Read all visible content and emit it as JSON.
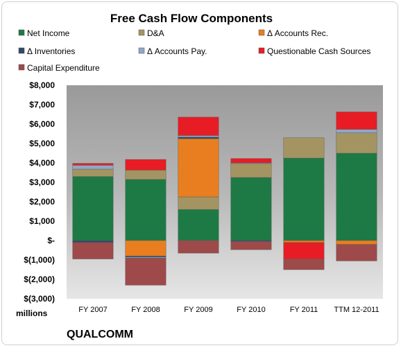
{
  "company": "QUALCOMM",
  "colors": {
    "plot_bg": "#b7b7b7",
    "Net Income": "#1e7a45",
    "D&A": "#a39462",
    "Δ Accounts Rec.": "#e87e1f",
    "Δ Inventories": "#2f4a66",
    "Δ Accounts Pay.": "#8ea8c9",
    "Questionable Cash Sources": "#e81c24",
    "Capital Expenditure": "#9e4a4a"
  },
  "chart_data": {
    "type": "bar",
    "stacked": true,
    "title": "Free Cash Flow Components",
    "ylabel": "millions",
    "xlabel": "",
    "ylim": [
      -3000,
      8000
    ],
    "yticks": [
      8000,
      7000,
      6000,
      5000,
      4000,
      3000,
      2000,
      1000,
      0,
      -1000,
      -2000,
      -3000
    ],
    "ytick_labels": [
      "$8,000",
      "$7,000",
      "$6,000",
      "$5,000",
      "$4,000",
      "$3,000",
      "$2,000",
      "$1,000",
      "$-",
      "$(1,000)",
      "$(2,000)",
      "$(3,000)"
    ],
    "categories": [
      "FY 2007",
      "FY 2008",
      "FY 2009",
      "FY 2010",
      "FY 2011",
      "TTM 12-2011"
    ],
    "legend_position": "top",
    "grid": false,
    "series": [
      {
        "name": "Net Income",
        "values": [
          3300,
          3150,
          1600,
          3250,
          4250,
          4500
        ]
      },
      {
        "name": "D&A",
        "values": [
          380,
          480,
          650,
          720,
          1050,
          1050
        ]
      },
      {
        "name": "Δ Accounts Rec.",
        "values": [
          0,
          -800,
          3000,
          0,
          -100,
          -200
        ]
      },
      {
        "name": "Δ Inventories",
        "values": [
          -100,
          -50,
          80,
          -50,
          0,
          0
        ]
      },
      {
        "name": "Δ Accounts Pay.",
        "values": [
          200,
          -50,
          80,
          30,
          0,
          180
        ]
      },
      {
        "name": "Questionable Cash Sources",
        "values": [
          100,
          550,
          950,
          230,
          -850,
          900
        ]
      },
      {
        "name": "Capital Expenditure",
        "values": [
          -850,
          -1400,
          -650,
          -420,
          -550,
          -850
        ]
      }
    ]
  }
}
